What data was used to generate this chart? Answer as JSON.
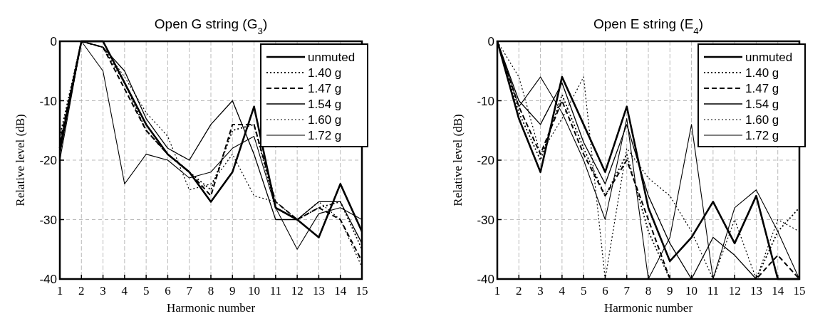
{
  "chart_data": [
    {
      "type": "line",
      "title": "Open G string (G$_{3}$)",
      "xlabel": "Harmonic number",
      "ylabel": "Relative level (dB)",
      "x": [
        1,
        2,
        3,
        4,
        5,
        6,
        7,
        8,
        9,
        10,
        11,
        12,
        13,
        14,
        15
      ],
      "xlim": [
        1,
        15
      ],
      "xticks": [
        1,
        2,
        3,
        4,
        5,
        6,
        7,
        8,
        9,
        10,
        11,
        12,
        13,
        14,
        15
      ],
      "ylim": [
        -40,
        0
      ],
      "yticks": [
        -40,
        -30,
        -20,
        -10,
        0
      ],
      "grid": true,
      "legend": "top right",
      "marker": "none",
      "series": [
        {
          "name": "unmuted",
          "color": "#000000",
          "line_style": "solid",
          "values": [
            -18,
            0,
            0,
            -7,
            -14,
            -19,
            -22,
            -27,
            -22,
            -11,
            -28,
            -30,
            -33,
            -24,
            -32
          ]
        },
        {
          "name": "1.40 g",
          "color": "#000000",
          "line_style": "dotted",
          "values": [
            -16,
            0,
            -1,
            -7,
            -15,
            -19,
            -22,
            -25,
            -15,
            -14,
            -28,
            -30,
            -28,
            -27,
            -35
          ]
        },
        {
          "name": "1.47 g",
          "color": "#000000",
          "line_style": "dashed",
          "values": [
            -17,
            0,
            -1,
            -8,
            -15,
            -19,
            -22,
            -26,
            -14,
            -14,
            -27,
            -30,
            -28,
            -30,
            -37
          ]
        },
        {
          "name": "1.54 g",
          "color": "#000000",
          "line_style": "solid",
          "values": [
            -19,
            0,
            -1,
            -5,
            -13,
            -18,
            -20,
            -14,
            -10,
            -19,
            -30,
            -30,
            -27,
            -27,
            -34
          ]
        },
        {
          "name": "1.60 g",
          "color": "#000000",
          "line_style": "dotted",
          "values": [
            -19,
            0,
            -1,
            -6,
            -12,
            -16,
            -25,
            -24,
            -19,
            -26,
            -27,
            -30,
            -27,
            -30,
            -38
          ]
        },
        {
          "name": "1.72 g",
          "color": "#000000",
          "line_style": "solid",
          "values": [
            -20,
            0,
            -5,
            -24,
            -19,
            -20,
            -23,
            -22,
            -18,
            -16,
            -28,
            -35,
            -29,
            -28,
            -30
          ]
        }
      ]
    },
    {
      "type": "line",
      "title": "Open E string (E$_{4}$)",
      "xlabel": "Harmonic number",
      "ylabel": "Relative level (dB)",
      "x": [
        1,
        2,
        3,
        4,
        5,
        6,
        7,
        8,
        9,
        10,
        11,
        12,
        13,
        14,
        15
      ],
      "xlim": [
        1,
        15
      ],
      "xticks": [
        1,
        2,
        3,
        4,
        5,
        6,
        7,
        8,
        9,
        10,
        11,
        12,
        13,
        14,
        15
      ],
      "ylim": [
        -40,
        0
      ],
      "yticks": [
        -40,
        -30,
        -20,
        -10,
        0
      ],
      "grid": true,
      "legend": "top right",
      "marker": "none",
      "series": [
        {
          "name": "unmuted",
          "color": "#000000",
          "line_style": "solid",
          "values": [
            0,
            -13,
            -22,
            -6,
            -14,
            -22,
            -11,
            -28,
            -37,
            -33,
            -27,
            -34,
            -26,
            -40,
            -40
          ]
        },
        {
          "name": "1.40 g",
          "color": "#000000",
          "line_style": "dotted",
          "values": [
            0,
            -12,
            -20,
            -9,
            -18,
            -26,
            -19,
            -32,
            -40,
            -40,
            -40,
            -40,
            -40,
            -32,
            -28
          ]
        },
        {
          "name": "1.47 g",
          "color": "#000000",
          "line_style": "dashed",
          "values": [
            0,
            -11,
            -19,
            -10,
            -19,
            -26,
            -20,
            -30,
            -40,
            -40,
            -40,
            -40,
            -40,
            -36,
            -40
          ]
        },
        {
          "name": "1.54 g",
          "color": "#000000",
          "line_style": "solid",
          "values": [
            0,
            -10,
            -14,
            -7,
            -17,
            -24,
            -14,
            -26,
            -34,
            -40,
            -33,
            -36,
            -40,
            -40,
            -40
          ]
        },
        {
          "name": "1.60 g",
          "color": "#000000",
          "line_style": "dotted",
          "values": [
            0,
            -6,
            -19,
            -13,
            -6,
            -40,
            -18,
            -23,
            -26,
            -32,
            -40,
            -30,
            -40,
            -30,
            -32
          ]
        },
        {
          "name": "1.72 g",
          "color": "#000000",
          "line_style": "solid",
          "values": [
            0,
            -11,
            -6,
            -12,
            -20,
            -30,
            -13,
            -40,
            -33,
            -14,
            -40,
            -28,
            -25,
            -32,
            -40
          ]
        }
      ]
    }
  ]
}
